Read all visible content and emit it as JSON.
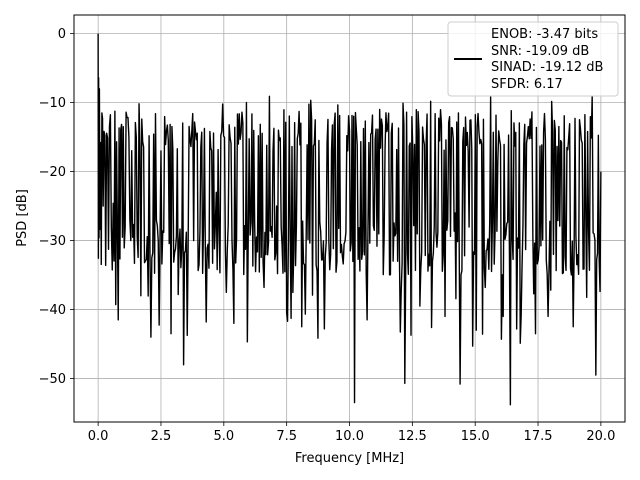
{
  "chart_data": {
    "type": "line",
    "title": "",
    "xlabel": "Frequency [MHz]",
    "ylabel": "PSD [dB]",
    "xlim": [
      -0.96,
      20.96
    ],
    "ylim": [
      -56.3,
      2.7
    ],
    "grid": true,
    "legend_position": "top-right",
    "xticks": [
      0.0,
      2.5,
      5.0,
      7.5,
      10.0,
      12.5,
      15.0,
      17.5,
      20.0
    ],
    "xtick_labels": [
      "0.0",
      "2.5",
      "5.0",
      "7.5",
      "10.0",
      "12.5",
      "15.0",
      "17.5",
      "20.0"
    ],
    "yticks": [
      0,
      -10,
      -20,
      -30,
      -40,
      -50
    ],
    "ytick_labels": [
      "0",
      "−10",
      "−20",
      "−30",
      "−40",
      "−50"
    ],
    "series": [
      {
        "name": "ENOB: -3.47 bits\nSNR: -19.09 dB\nSINAD: -19.12 dB\nSFDR: 6.17",
        "legend_lines": [
          "ENOB: -3.47 bits",
          "SNR: -19.09 dB",
          "SINAD: -19.12 dB",
          "SFDR: 6.17"
        ],
        "color": "#000000",
        "x": [
          0.0,
          0.02,
          0.05,
          0.1,
          0.15,
          0.2,
          0.3,
          0.45,
          0.6,
          0.8,
          1.0,
          1.3,
          1.7,
          2.1,
          2.5,
          2.9,
          3.4,
          3.8,
          4.3,
          4.7,
          5.1,
          5.4,
          5.9,
          6.3,
          6.6,
          7.1,
          7.5,
          8.1,
          8.6,
          9.0,
          9.5,
          10.0,
          10.2,
          10.7,
          11.2,
          11.7,
          12.2,
          12.8,
          13.3,
          13.8,
          14.2,
          14.4,
          14.9,
          15.4,
          15.9,
          16.4,
          16.9,
          17.4,
          17.9,
          18.4,
          18.9,
          19.4,
          19.8,
          20.0
        ],
        "y": [
          0.0,
          -6.4,
          -8.0,
          -15.8,
          -11.5,
          -25.0,
          -33.6,
          -13.5,
          -24.6,
          -41.5,
          -13.5,
          -30.0,
          -38.0,
          -44.0,
          -17.0,
          -43.5,
          -48.0,
          -30.0,
          -41.8,
          -23.0,
          -37.5,
          -42.0,
          -10.0,
          -29.5,
          -36.8,
          -25.0,
          -40.5,
          -42.5,
          -16.0,
          -42.8,
          -33.0,
          -14.0,
          -53.5,
          -41.5,
          -11.0,
          -13.0,
          -50.7,
          -39.5,
          -33.0,
          -41.0,
          -26.0,
          -50.8,
          -45.3,
          -36.8,
          -18.5,
          -53.8,
          -28.0,
          -43.5,
          -41.0,
          -15.5,
          -42.5,
          -26.0,
          -49.5,
          -20.0
        ]
      }
    ],
    "noise_band": {
      "upper_typical": -14.0,
      "lower_typical": -31.0,
      "center": -21.0
    }
  }
}
